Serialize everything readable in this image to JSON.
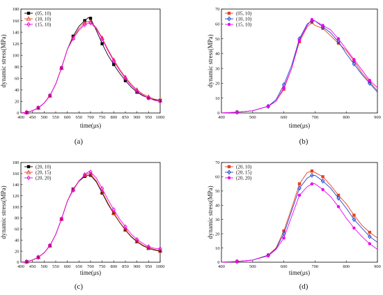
{
  "chart_data": [
    {
      "panel_label": "(a)",
      "type": "line",
      "xlabel": "time(μs)",
      "ylabel": "dynamic stress(MPa)",
      "xlim": [
        400,
        1000
      ],
      "ylim": [
        0,
        180
      ],
      "xticks": [
        400,
        450,
        500,
        550,
        600,
        650,
        700,
        750,
        800,
        850,
        900,
        950,
        1000
      ],
      "yticks": [
        0,
        20,
        40,
        60,
        80,
        100,
        120,
        140,
        160,
        180
      ],
      "grid": false,
      "legend_position": "top-left",
      "series": [
        {
          "name": "(05, 10)",
          "color": "#000000",
          "marker": "square",
          "x": [
            400,
            425,
            450,
            475,
            500,
            525,
            550,
            575,
            600,
            625,
            650,
            675,
            690,
            700,
            725,
            750,
            775,
            800,
            825,
            850,
            875,
            900,
            925,
            950,
            975,
            1000
          ],
          "y": [
            0,
            1,
            4,
            9,
            17,
            30,
            50,
            78,
            110,
            133,
            150,
            160,
            165,
            164,
            143,
            120,
            100,
            84,
            69,
            56,
            45,
            36,
            30,
            26,
            23,
            22
          ]
        },
        {
          "name": "(10, 10)",
          "color": "#e8401c",
          "marker": "triangle",
          "x": [
            400,
            425,
            450,
            475,
            500,
            525,
            550,
            575,
            600,
            625,
            650,
            675,
            690,
            700,
            725,
            750,
            775,
            800,
            825,
            850,
            875,
            900,
            925,
            950,
            975,
            1000
          ],
          "y": [
            0,
            1,
            4,
            9,
            17,
            30,
            50,
            78,
            110,
            130,
            146,
            156,
            159,
            158,
            148,
            130,
            110,
            92,
            76,
            62,
            50,
            40,
            33,
            28,
            24,
            22
          ]
        },
        {
          "name": "(15, 10)",
          "color": "#ee00ee",
          "marker": "diamond",
          "x": [
            400,
            425,
            450,
            475,
            500,
            525,
            550,
            575,
            600,
            625,
            650,
            675,
            690,
            700,
            725,
            750,
            775,
            800,
            825,
            850,
            875,
            900,
            925,
            950,
            975,
            1000
          ],
          "y": [
            0,
            1,
            4,
            9,
            17,
            30,
            50,
            78,
            110,
            129,
            143,
            153,
            156,
            156,
            146,
            128,
            108,
            90,
            74,
            60,
            48,
            38,
            31,
            26,
            22,
            20
          ]
        }
      ]
    },
    {
      "panel_label": "(b)",
      "type": "line",
      "xlabel": "time(μs)",
      "ylabel": "dynamic stress(MPa)",
      "xlim": [
        400,
        900
      ],
      "ylim": [
        0,
        70
      ],
      "xticks": [
        400,
        500,
        600,
        700,
        800,
        900
      ],
      "yticks": [
        0,
        10,
        20,
        30,
        40,
        50,
        60,
        70
      ],
      "grid": false,
      "legend_position": "top-left",
      "series": [
        {
          "name": "(05, 10)",
          "color": "#e8401c",
          "marker": "square",
          "x": [
            400,
            450,
            500,
            550,
            575,
            600,
            625,
            650,
            675,
            690,
            700,
            725,
            750,
            775,
            800,
            825,
            850,
            875,
            900
          ],
          "y": [
            0,
            0.5,
            1.5,
            4.5,
            8,
            16,
            30,
            48,
            58,
            61,
            59,
            57,
            52,
            47,
            42,
            35,
            27,
            21,
            15
          ]
        },
        {
          "name": "(10, 10)",
          "color": "#1f3fd0",
          "marker": "diamond",
          "x": [
            400,
            450,
            500,
            550,
            575,
            600,
            625,
            650,
            675,
            690,
            700,
            725,
            750,
            775,
            800,
            825,
            850,
            875,
            900
          ],
          "y": [
            0,
            0.5,
            1.5,
            4.5,
            9,
            19,
            32,
            50,
            60,
            62,
            62,
            58,
            54,
            48,
            40,
            33,
            26,
            20,
            14
          ]
        },
        {
          "name": "(15, 10)",
          "color": "#ee00ee",
          "marker": "circle",
          "x": [
            400,
            450,
            500,
            550,
            575,
            600,
            625,
            650,
            675,
            690,
            700,
            725,
            750,
            775,
            800,
            825,
            850,
            875,
            900
          ],
          "y": [
            0,
            0.5,
            1.5,
            4.5,
            8,
            17,
            30,
            49,
            59,
            63,
            62,
            59,
            56,
            50,
            43,
            36,
            29,
            22,
            17
          ]
        }
      ]
    },
    {
      "panel_label": "(c)",
      "type": "line",
      "xlabel": "time(μs)",
      "ylabel": "dynamic stress(MPa)",
      "xlim": [
        400,
        1000
      ],
      "ylim": [
        0,
        180
      ],
      "xticks": [
        400,
        450,
        500,
        550,
        600,
        650,
        700,
        750,
        800,
        850,
        900,
        950,
        1000
      ],
      "yticks": [
        0,
        20,
        40,
        60,
        80,
        100,
        120,
        140,
        160,
        180
      ],
      "grid": false,
      "legend_position": "top-left",
      "series": [
        {
          "name": "(20, 10)",
          "color": "#000000",
          "marker": "square",
          "x": [
            400,
            425,
            450,
            475,
            500,
            525,
            550,
            575,
            600,
            625,
            650,
            675,
            690,
            700,
            725,
            750,
            775,
            800,
            825,
            850,
            875,
            900,
            925,
            950,
            975,
            1000
          ],
          "y": [
            0,
            1,
            4,
            9,
            17,
            30,
            50,
            78,
            110,
            132,
            146,
            155,
            157,
            157,
            145,
            125,
            105,
            88,
            72,
            58,
            46,
            37,
            30,
            25,
            22,
            20
          ]
        },
        {
          "name": "(20, 15)",
          "color": "#e8401c",
          "marker": "triangle",
          "x": [
            400,
            425,
            450,
            475,
            500,
            525,
            550,
            575,
            600,
            625,
            650,
            675,
            690,
            700,
            725,
            750,
            775,
            800,
            825,
            850,
            875,
            900,
            925,
            950,
            975,
            1000
          ],
          "y": [
            0,
            1,
            4,
            9,
            17,
            30,
            50,
            78,
            110,
            131,
            147,
            157,
            160,
            159,
            147,
            127,
            107,
            89,
            73,
            59,
            47,
            38,
            31,
            26,
            23,
            21
          ]
        },
        {
          "name": "(20, 20)",
          "color": "#ee00ee",
          "marker": "diamond",
          "x": [
            400,
            425,
            450,
            475,
            500,
            525,
            550,
            575,
            600,
            625,
            650,
            675,
            690,
            700,
            725,
            750,
            775,
            800,
            825,
            850,
            875,
            900,
            925,
            950,
            975,
            1000
          ],
          "y": [
            0,
            1,
            4,
            9,
            17,
            30,
            50,
            78,
            110,
            130,
            146,
            158,
            163,
            163,
            152,
            133,
            113,
            95,
            78,
            64,
            51,
            41,
            34,
            28,
            25,
            24
          ]
        }
      ]
    },
    {
      "panel_label": "(d)",
      "type": "line",
      "xlabel": "time(μs)",
      "ylabel": "dynamic stress(MPa)",
      "xlim": [
        400,
        900
      ],
      "ylim": [
        0,
        70
      ],
      "xticks": [
        400,
        500,
        600,
        700,
        800,
        900
      ],
      "yticks": [
        0,
        10,
        20,
        30,
        40,
        50,
        60,
        70
      ],
      "grid": false,
      "legend_position": "top-left",
      "series": [
        {
          "name": "(20, 10)",
          "color": "#e8401c",
          "marker": "square",
          "x": [
            400,
            450,
            500,
            550,
            575,
            600,
            625,
            650,
            675,
            690,
            700,
            725,
            750,
            775,
            800,
            825,
            850,
            875,
            900
          ],
          "y": [
            0,
            0.5,
            1.5,
            5,
            10,
            22,
            38,
            55,
            63,
            64,
            63,
            60,
            54,
            47,
            41,
            33,
            26,
            21,
            17
          ]
        },
        {
          "name": "(20, 15)",
          "color": "#1f3fd0",
          "marker": "diamond",
          "x": [
            400,
            450,
            500,
            550,
            575,
            600,
            625,
            650,
            675,
            690,
            700,
            725,
            750,
            775,
            800,
            825,
            850,
            875,
            900
          ],
          "y": [
            0,
            0.5,
            1.5,
            4.8,
            9.5,
            20,
            36,
            52,
            59,
            61,
            61,
            57,
            52,
            45,
            38,
            30,
            24,
            18,
            14
          ]
        },
        {
          "name": "(20, 20)",
          "color": "#ee00ee",
          "marker": "circle",
          "x": [
            400,
            450,
            500,
            550,
            575,
            600,
            625,
            650,
            675,
            690,
            700,
            725,
            750,
            775,
            800,
            825,
            850,
            875,
            900
          ],
          "y": [
            0,
            0.5,
            1.5,
            4.5,
            9,
            17,
            32,
            47,
            53,
            55,
            55,
            51,
            46,
            39,
            31,
            24,
            18,
            13,
            9
          ]
        }
      ]
    }
  ]
}
